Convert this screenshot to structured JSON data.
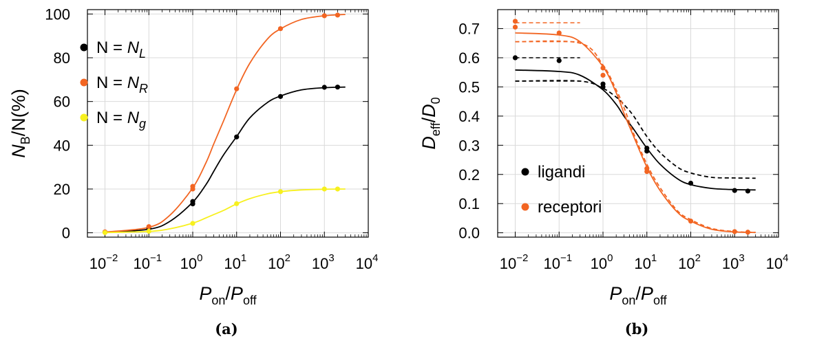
{
  "chart_data": [
    {
      "type": "line",
      "caption": "(a)",
      "xscale": "log",
      "xlim_log10": [
        -2.4,
        4
      ],
      "ylim": [
        -2,
        102
      ],
      "yticks": [
        0,
        20,
        40,
        60,
        80,
        100
      ],
      "xtick_exponents": [
        "-2",
        "-1",
        "0",
        "1",
        "2",
        "3",
        "4"
      ],
      "grid": true,
      "legend_placement": "top-left",
      "xlabel": {
        "p1": "P",
        "s1": "on",
        "mid": "/",
        "p2": "P",
        "s2": "off"
      },
      "ylabel": {
        "p1": "N",
        "s1": "B",
        "rest": "/N(%)"
      },
      "series": [
        {
          "legend": {
            "prefix": "N = ",
            "var": "N",
            "sub": "L"
          },
          "color": "#000000",
          "points": [
            [
              0.01,
              0.3
            ],
            [
              0.1,
              2.1
            ],
            [
              1,
              13.2
            ],
            [
              1,
              14.3
            ],
            [
              10,
              43.8
            ],
            [
              100,
              62.3
            ],
            [
              1000,
              66.5
            ],
            [
              2000,
              66.6
            ]
          ],
          "curve": [
            [
              0.01,
              0.2
            ],
            [
              0.1,
              1.6
            ],
            [
              0.3,
              5.2
            ],
            [
              1,
              14.0
            ],
            [
              2,
              22.0
            ],
            [
              3,
              28.0
            ],
            [
              5,
              35.5
            ],
            [
              10,
              44.0
            ],
            [
              20,
              52.5
            ],
            [
              50,
              59.5
            ],
            [
              100,
              62.5
            ],
            [
              300,
              65.3
            ],
            [
              1000,
              66.3
            ],
            [
              3000,
              66.6
            ]
          ],
          "dashed": false
        },
        {
          "legend": {
            "prefix": "N = ",
            "var": "N",
            "sub": "R"
          },
          "color": "#f26522",
          "points": [
            [
              0.01,
              0.4
            ],
            [
              0.1,
              2.8
            ],
            [
              1,
              20.0
            ],
            [
              1,
              21.2
            ],
            [
              10,
              65.8
            ],
            [
              100,
              93.3
            ],
            [
              1000,
              99.2
            ],
            [
              2000,
              99.5
            ]
          ],
          "curve": [
            [
              0.01,
              0.3
            ],
            [
              0.1,
              2.5
            ],
            [
              0.3,
              8.0
            ],
            [
              1,
              20.5
            ],
            [
              2,
              32.0
            ],
            [
              3,
              40.5
            ],
            [
              5,
              51.0
            ],
            [
              10,
              65.5
            ],
            [
              20,
              77.5
            ],
            [
              50,
              88.5
            ],
            [
              100,
              93.2
            ],
            [
              300,
              97.5
            ],
            [
              1000,
              99.2
            ],
            [
              3000,
              99.8
            ]
          ],
          "dashed": false
        },
        {
          "legend": {
            "prefix": "N = ",
            "var": "N",
            "sub": "g"
          },
          "color": "#f7f01e",
          "points": [
            [
              0.01,
              0.1
            ],
            [
              0.1,
              0.7
            ],
            [
              1,
              4.3
            ],
            [
              10,
              13.3
            ],
            [
              100,
              18.8
            ],
            [
              1000,
              20.0
            ],
            [
              2000,
              20.0
            ]
          ],
          "curve": [
            [
              0.01,
              0.1
            ],
            [
              0.1,
              0.6
            ],
            [
              0.3,
              1.8
            ],
            [
              1,
              4.4
            ],
            [
              2,
              6.8
            ],
            [
              3,
              8.3
            ],
            [
              5,
              10.2
            ],
            [
              10,
              13.2
            ],
            [
              20,
              15.6
            ],
            [
              50,
              17.8
            ],
            [
              100,
              18.8
            ],
            [
              300,
              19.6
            ],
            [
              1000,
              19.9
            ],
            [
              3000,
              20.0
            ]
          ],
          "dashed": false
        }
      ]
    },
    {
      "type": "line",
      "caption": "(b)",
      "xscale": "log",
      "xlim_log10": [
        -2.4,
        4
      ],
      "ylim": [
        -0.015,
        0.765
      ],
      "yticks": [
        "0.0",
        "0.1",
        "0.2",
        "0.3",
        "0.4",
        "0.5",
        "0.6",
        "0.7"
      ],
      "xtick_exponents": [
        "-2",
        "-1",
        "0",
        "1",
        "2",
        "3",
        "4"
      ],
      "grid": true,
      "legend_placement": "bottom-left",
      "xlabel": {
        "p1": "P",
        "s1": "on",
        "mid": "/",
        "p2": "P",
        "s2": "off"
      },
      "ylabel": {
        "p1": "D",
        "s1": "eff",
        "mid": "/",
        "p2": "D",
        "s2": "0"
      },
      "series": [
        {
          "legend": {
            "text": "ligandi"
          },
          "color": "#000000",
          "points": [
            [
              0.01,
              0.6
            ],
            [
              0.1,
              0.59
            ],
            [
              1,
              0.51
            ],
            [
              1,
              0.5
            ],
            [
              10,
              0.29
            ],
            [
              10,
              0.28
            ],
            [
              100,
              0.17
            ],
            [
              1000,
              0.145
            ],
            [
              2000,
              0.143
            ]
          ],
          "curve": [
            [
              0.01,
              0.558
            ],
            [
              0.1,
              0.553
            ],
            [
              0.3,
              0.54
            ],
            [
              1,
              0.49
            ],
            [
              2,
              0.44
            ],
            [
              3,
              0.4
            ],
            [
              5,
              0.355
            ],
            [
              10,
              0.29
            ],
            [
              20,
              0.235
            ],
            [
              50,
              0.185
            ],
            [
              100,
              0.165
            ],
            [
              300,
              0.152
            ],
            [
              1000,
              0.148
            ],
            [
              3000,
              0.147
            ]
          ],
          "dashed": false
        },
        {
          "legend": {
            "text": "receptori"
          },
          "color": "#f26522",
          "points": [
            [
              0.01,
              0.725
            ],
            [
              0.01,
              0.705
            ],
            [
              0.1,
              0.685
            ],
            [
              1,
              0.565
            ],
            [
              1,
              0.54
            ],
            [
              10,
              0.22
            ],
            [
              10,
              0.21
            ],
            [
              100,
              0.04
            ],
            [
              1000,
              0.004
            ],
            [
              2000,
              0.002
            ]
          ],
          "curve": [
            [
              0.01,
              0.685
            ],
            [
              0.1,
              0.678
            ],
            [
              0.3,
              0.655
            ],
            [
              1,
              0.57
            ],
            [
              2,
              0.48
            ],
            [
              3,
              0.41
            ],
            [
              5,
              0.33
            ],
            [
              10,
              0.225
            ],
            [
              20,
              0.145
            ],
            [
              50,
              0.07
            ],
            [
              100,
              0.04
            ],
            [
              300,
              0.012
            ],
            [
              1000,
              0.003
            ],
            [
              3000,
              0.001
            ]
          ],
          "dashed": false
        },
        {
          "name": "",
          "color": "#000000",
          "points": [],
          "curve": [
            [
              0.01,
              0.52
            ],
            [
              0.3,
              0.52
            ],
            [
              1,
              0.495
            ],
            [
              2,
              0.465
            ],
            [
              3,
              0.44
            ],
            [
              5,
              0.4
            ],
            [
              10,
              0.33
            ],
            [
              20,
              0.275
            ],
            [
              50,
              0.225
            ],
            [
              100,
              0.205
            ],
            [
              300,
              0.19
            ],
            [
              1000,
              0.188
            ],
            [
              3000,
              0.187
            ]
          ],
          "dashed": true
        },
        {
          "name": "",
          "color": "#f26522",
          "points": [],
          "curve": [
            [
              0.01,
              0.655
            ],
            [
              0.3,
              0.65
            ],
            [
              1,
              0.575
            ],
            [
              2,
              0.49
            ],
            [
              3,
              0.43
            ],
            [
              5,
              0.34
            ],
            [
              10,
              0.235
            ],
            [
              20,
              0.155
            ],
            [
              50,
              0.075
            ],
            [
              100,
              0.045
            ],
            [
              300,
              0.015
            ],
            [
              1000,
              0.004
            ],
            [
              3000,
              0.001
            ]
          ],
          "dashed": true
        }
      ],
      "reference_lines": [
        {
          "color": "#f26522",
          "y": 0.72,
          "x_from": 0.01,
          "x_to": 0.3,
          "dashed": true
        },
        {
          "color": "#f26522",
          "y": 0.655,
          "x_from": 0.01,
          "x_to": 0.3,
          "dashed": true
        },
        {
          "color": "#000000",
          "y": 0.6,
          "x_from": 0.01,
          "x_to": 0.3,
          "dashed": true
        },
        {
          "color": "#000000",
          "y": 0.52,
          "x_from": 0.01,
          "x_to": 0.3,
          "dashed": true
        }
      ]
    }
  ]
}
